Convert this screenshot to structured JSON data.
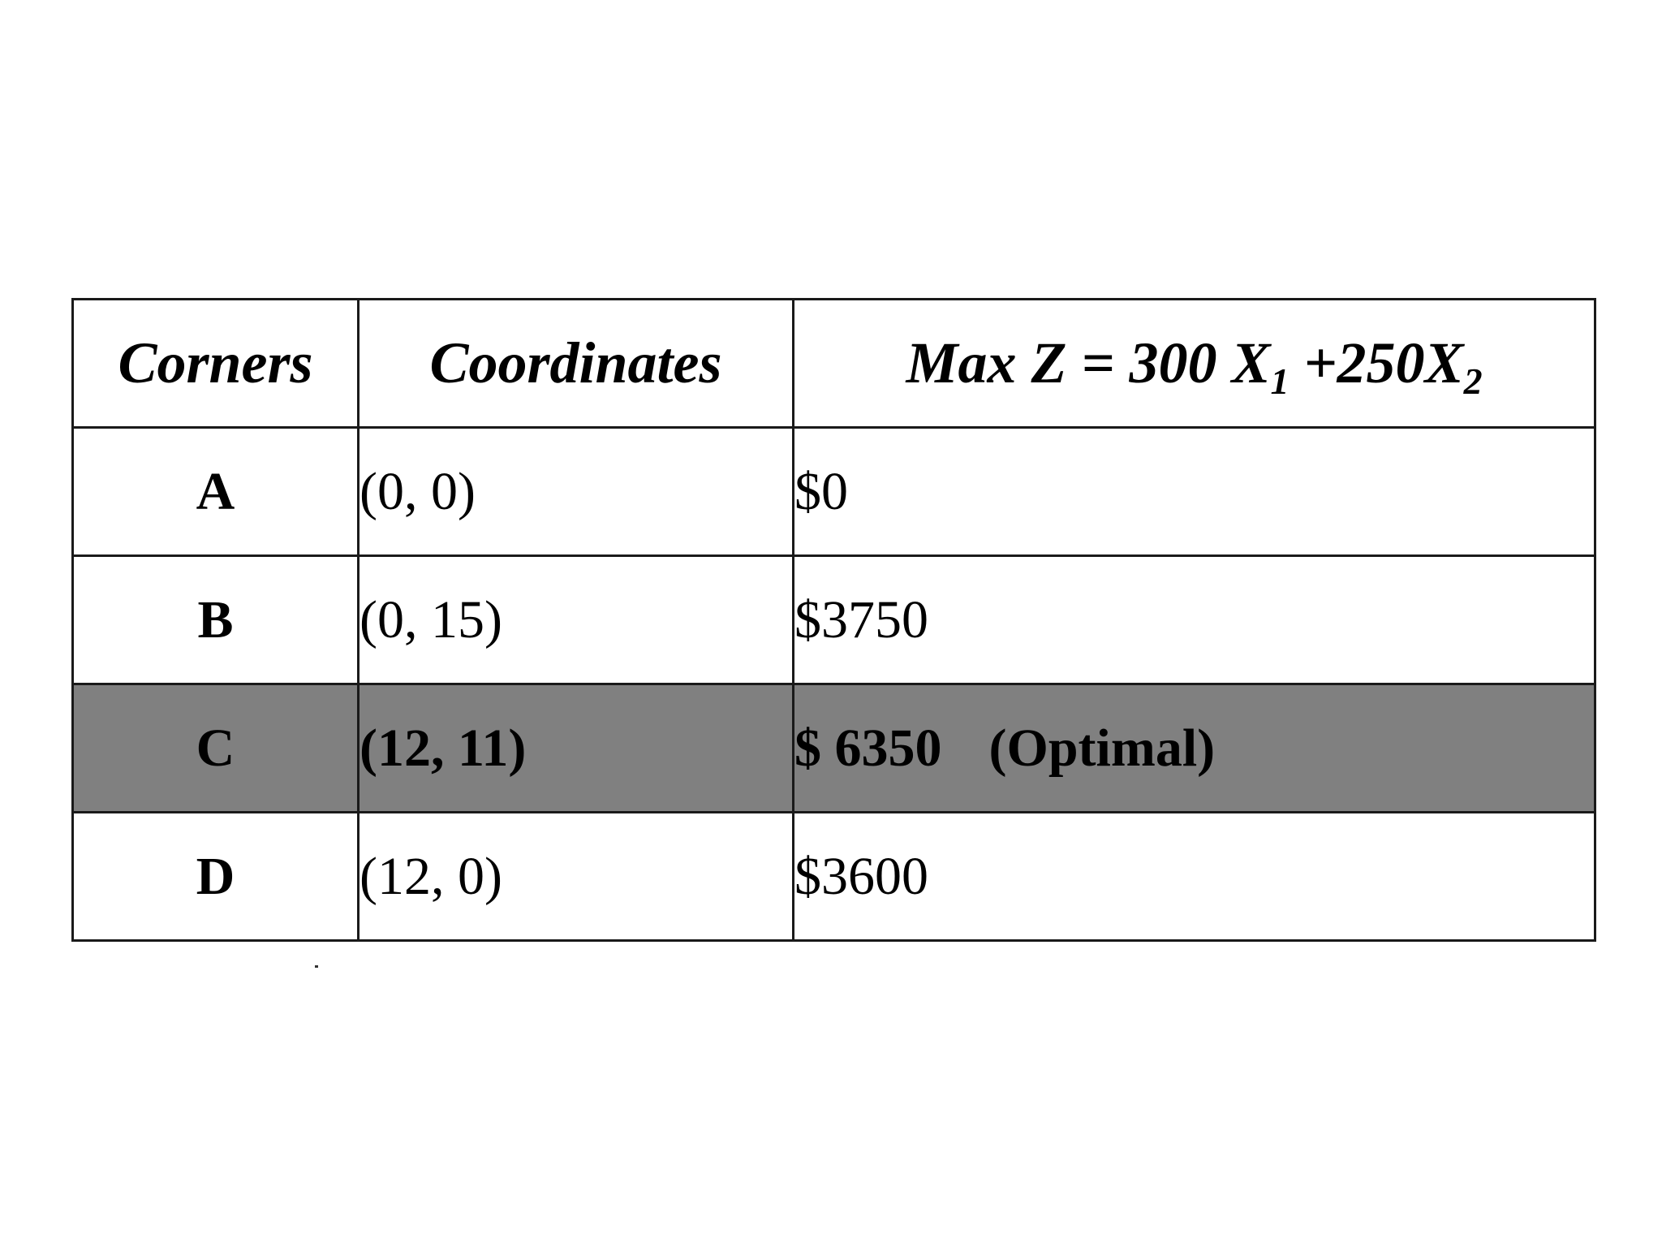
{
  "table": {
    "headers": {
      "corners": "Corners",
      "coordinates": "Coordinates",
      "objective": {
        "prefix": "Max Z = 300 X",
        "sub1": "1",
        "middle": " +250X",
        "sub2": "2"
      }
    },
    "rows": [
      {
        "corner": "A",
        "coordinates": "(0, 0)",
        "value": "$0",
        "note": "",
        "optimal": false
      },
      {
        "corner": "B",
        "coordinates": "(0, 15)",
        "value": "$3750",
        "note": "",
        "optimal": false
      },
      {
        "corner": "C",
        "coordinates": "(12, 11)",
        "value": "$ 6350",
        "note": "(Optimal)",
        "optimal": true
      },
      {
        "corner": "D",
        "coordinates": "(12, 0)",
        "value": "$3600",
        "note": "",
        "optimal": false
      }
    ],
    "highlight_color": "#808080"
  }
}
